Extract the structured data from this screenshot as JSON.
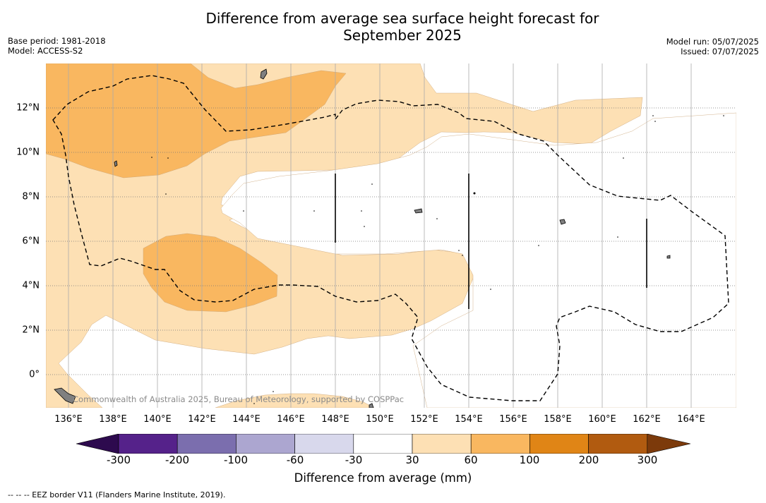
{
  "title_line1": "Difference from average sea surface height forecast for",
  "title_line2": "September 2025",
  "meta_left": {
    "base_period": "Base period: 1981-2018",
    "model": "Model: ACCESS-S2"
  },
  "meta_right": {
    "model_run": "Model run: 05/07/2025",
    "issued": "Issued: 07/07/2025"
  },
  "map": {
    "lon_labels": [
      "136°E",
      "138°E",
      "140°E",
      "142°E",
      "144°E",
      "146°E",
      "148°E",
      "150°E",
      "152°E",
      "154°E",
      "156°E",
      "158°E",
      "160°E",
      "162°E",
      "164°E"
    ],
    "lat_labels": [
      "12°N",
      "10°N",
      "8°N",
      "6°N",
      "4°N",
      "2°N",
      "0°"
    ],
    "copyright": "Commonwealth of Australia 2025, Bureau of Meteorology, supported by COSPPac",
    "colors": {
      "light_orange": "#fde0b4",
      "orange": "#f9b760",
      "land": "#808080",
      "eez_line": "#000000"
    }
  },
  "colorbar": {
    "label": "Difference from average (mm)",
    "ticks": [
      "-300",
      "-200",
      "-100",
      "-60",
      "-30",
      "30",
      "60",
      "100",
      "200",
      "300"
    ],
    "colors": [
      "#2d0a4e",
      "#55228a",
      "#7b6eae",
      "#aca6d0",
      "#d8d8ec",
      "#ffffff",
      "#fde0b4",
      "#f9b760",
      "#e08516",
      "#b15b10",
      "#7c3a0b"
    ]
  },
  "footer": "--  --  -- EEZ border V11 (Flanders Marine Institute, 2019)."
}
